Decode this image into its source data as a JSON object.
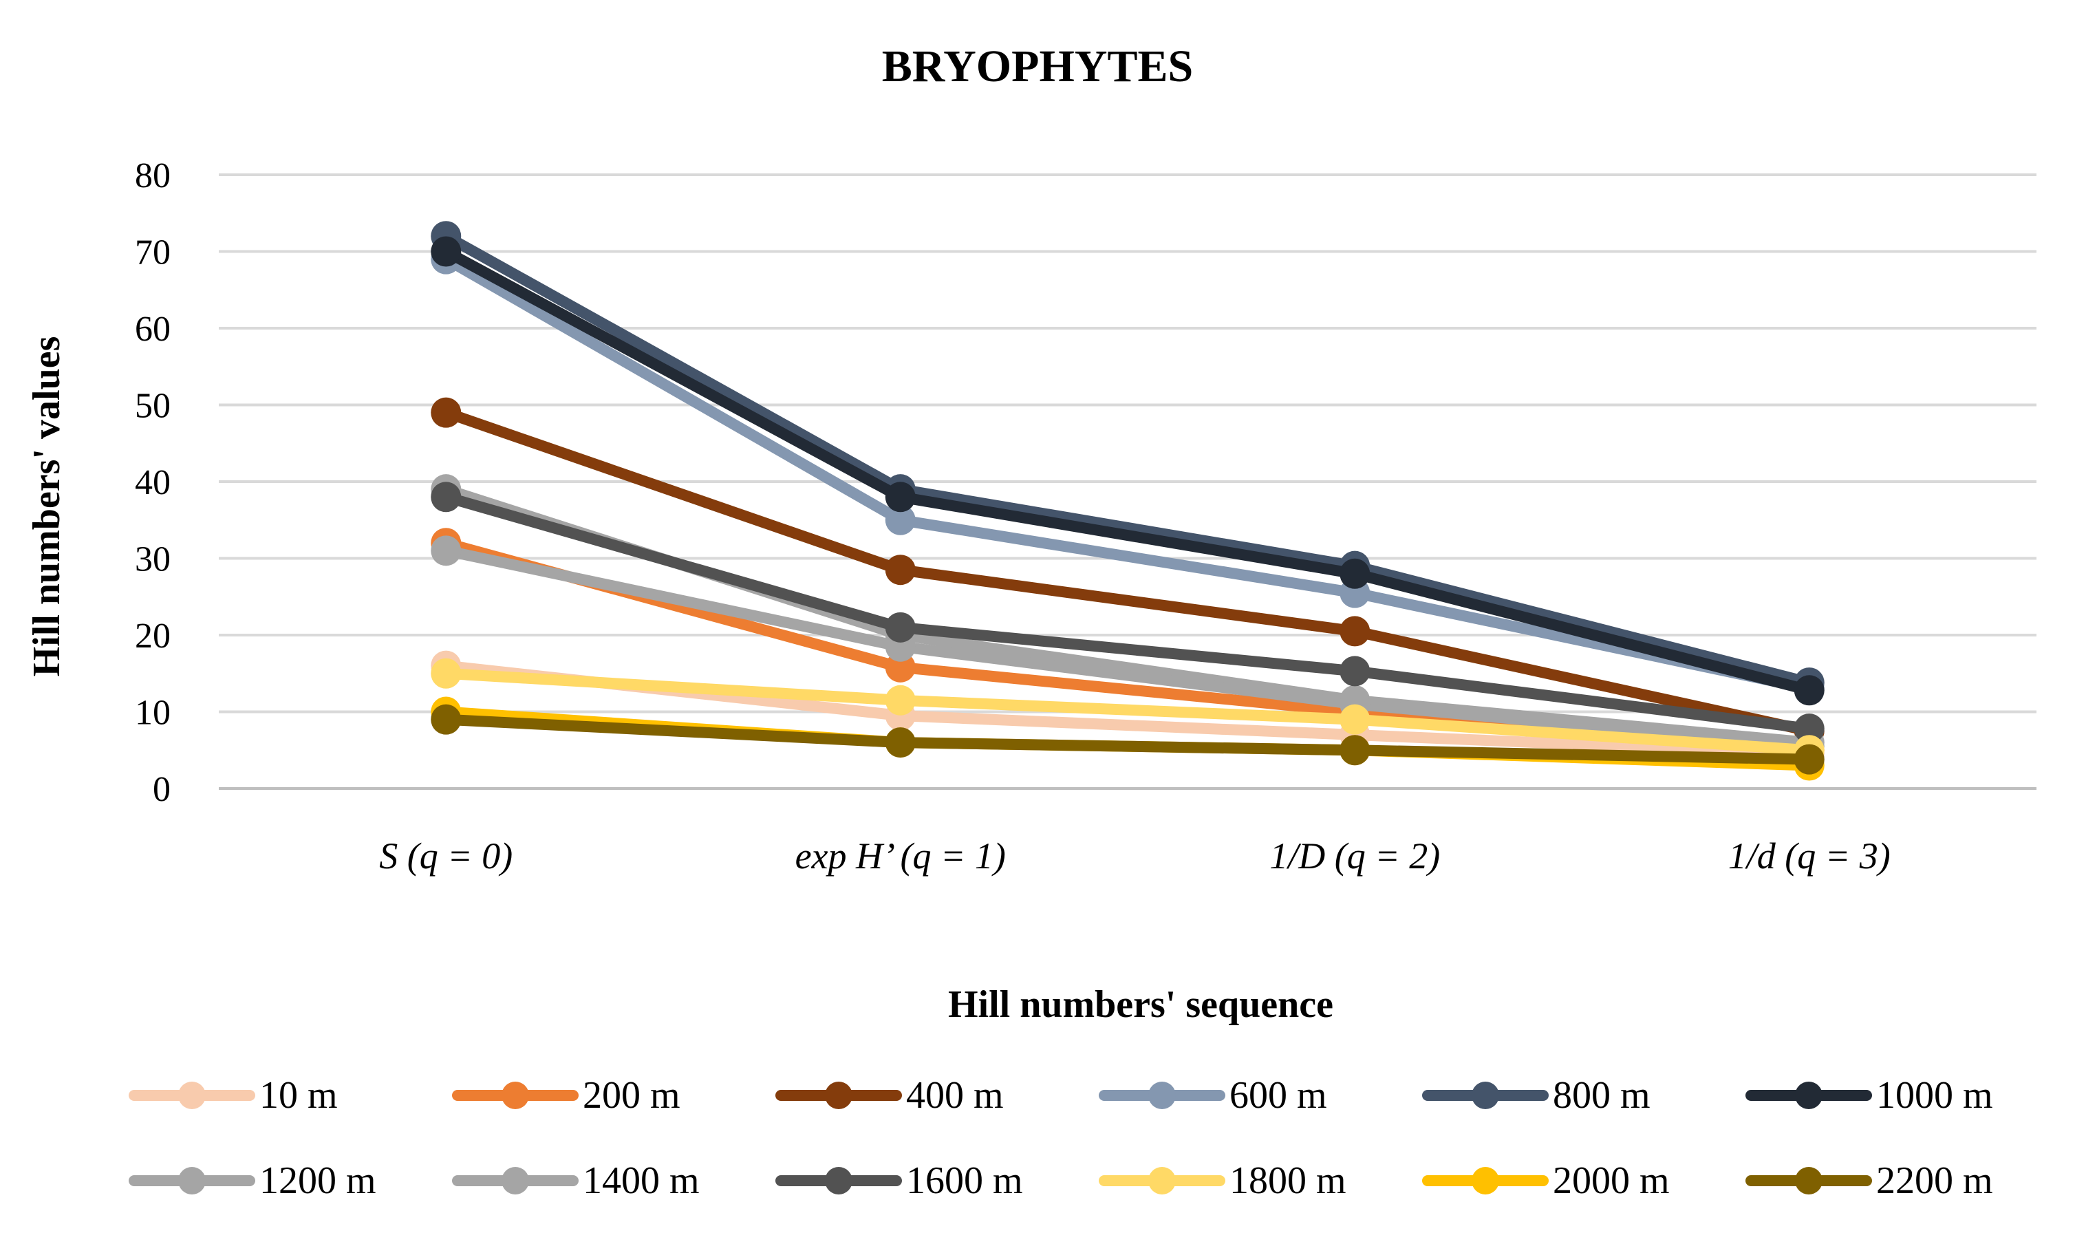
{
  "chart_data": {
    "type": "line",
    "title": "BRYOPHYTES",
    "xlabel": "Hill numbers' sequence",
    "ylabel": "Hill numbers' values",
    "ylim": [
      0,
      80
    ],
    "yticks": [
      0,
      10,
      20,
      30,
      40,
      50,
      60,
      70,
      80
    ],
    "grid": true,
    "legend_position": "bottom",
    "categories": [
      "S (q = 0)",
      "exp H’ (q = 1)",
      "1/D (q = 2)",
      "1/d (q = 3)"
    ],
    "series": [
      {
        "name": "10 m",
        "color": "#F8CBAD",
        "values": [
          16,
          9.5,
          7,
          4.5
        ]
      },
      {
        "name": "200 m",
        "color": "#ED7D31",
        "values": [
          32,
          15.8,
          10,
          5
        ]
      },
      {
        "name": "400 m",
        "color": "#843C0C",
        "values": [
          49,
          28.5,
          20.5,
          7.5
        ]
      },
      {
        "name": "600 m",
        "color": "#8497B0",
        "values": [
          69,
          35,
          25.5,
          13
        ]
      },
      {
        "name": "800 m",
        "color": "#44546A",
        "values": [
          72,
          39,
          29,
          13.8
        ]
      },
      {
        "name": "1000 m",
        "color": "#222A35",
        "values": [
          70,
          38,
          28,
          12.8
        ]
      },
      {
        "name": "1200 m",
        "color": "#A5A5A5",
        "values": [
          39,
          20,
          11.5,
          6
        ]
      },
      {
        "name": "1400 m",
        "color": "#A5A5A5",
        "values": [
          31,
          18.5,
          11,
          5.5
        ]
      },
      {
        "name": "1600 m",
        "color": "#525252",
        "values": [
          38,
          21,
          15.3,
          7.8
        ]
      },
      {
        "name": "1800 m",
        "color": "#FFD966",
        "values": [
          15,
          11.5,
          9,
          5
        ]
      },
      {
        "name": "2000 m",
        "color": "#FFC000",
        "values": [
          10,
          6,
          5,
          3
        ]
      },
      {
        "name": "2200 m",
        "color": "#7F6000",
        "values": [
          9,
          6,
          5,
          3.8
        ]
      }
    ]
  }
}
